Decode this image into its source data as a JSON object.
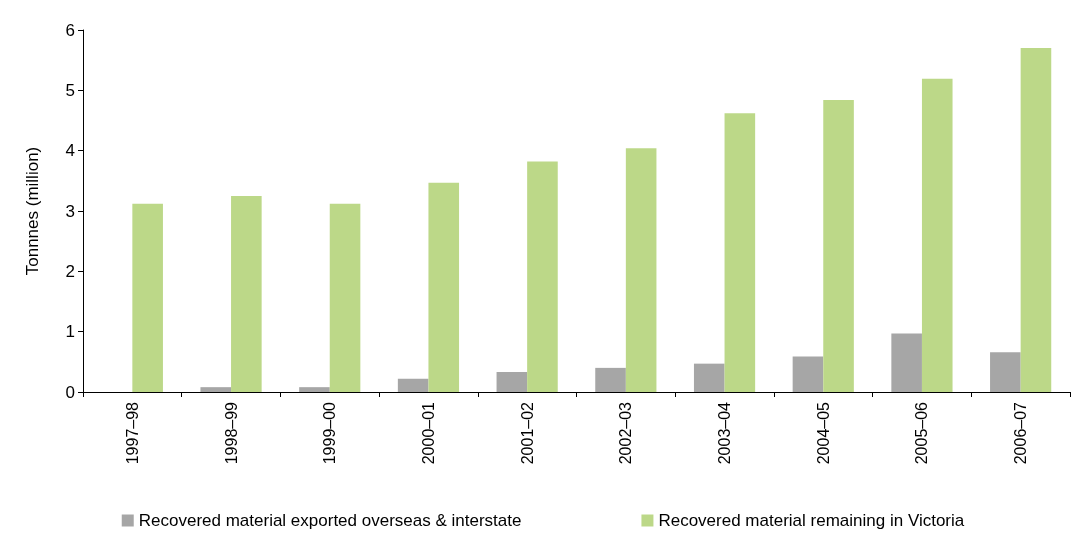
{
  "chart_data": {
    "type": "bar",
    "ylabel": "Tonnnes (million)",
    "categories": [
      "1997–98",
      "1998–99",
      "1999–00",
      "2000–01",
      "2001–02",
      "2002–03",
      "2003–04",
      "2004–05",
      "2005–06",
      "2006–07"
    ],
    "series": [
      {
        "name": "Recovered material exported overseas & interstate",
        "color": "#a6a6a6",
        "values": [
          0,
          0.08,
          0.08,
          0.22,
          0.33,
          0.4,
          0.47,
          0.59,
          0.97,
          0.66
        ]
      },
      {
        "name": "Recovered material remaining in Victoria",
        "color": "#bcd888",
        "values": [
          3.12,
          3.25,
          3.12,
          3.47,
          3.82,
          4.04,
          4.62,
          4.84,
          5.19,
          5.7
        ]
      }
    ],
    "ylim": [
      0,
      6
    ],
    "yticks": [
      0,
      1,
      2,
      3,
      4,
      5,
      6
    ],
    "grid": false,
    "legend": "bottom"
  }
}
